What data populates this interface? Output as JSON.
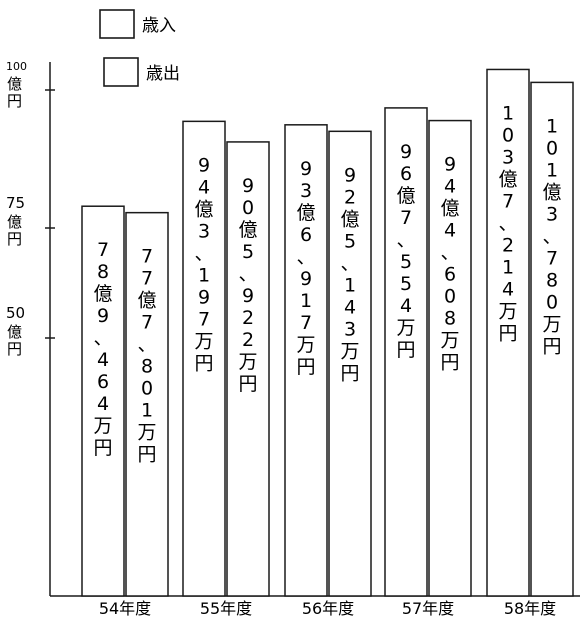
{
  "legend": [
    {
      "label": "歳入"
    },
    {
      "label": "歳出"
    }
  ],
  "chart_data": {
    "type": "bar",
    "categories": [
      "54年度",
      "55年度",
      "56年度",
      "57年度",
      "58年度"
    ],
    "series": [
      {
        "name": "歳入",
        "values": [
          78.9464,
          94.3197,
          93.6917,
          96.7554,
          103.7214
        ]
      },
      {
        "name": "歳出",
        "values": [
          77.7801,
          90.5922,
          92.5143,
          94.4608,
          101.378
        ]
      }
    ],
    "data_labels": [
      [
        "78億9、464万円",
        "77億7、801万円"
      ],
      [
        "94億3、197万円",
        "90億5、922万円"
      ],
      [
        "93億6、917万円",
        "92億5、143万円"
      ],
      [
        "96億7、554万円",
        "94億4、608万円"
      ],
      [
        "103億7、214万円",
        "101億3、780万円"
      ]
    ],
    "y_ticks": [
      {
        "value": 100,
        "number": "100",
        "unit": "億円"
      },
      {
        "value": 75,
        "number": "75",
        "unit": "億円"
      },
      {
        "value": 50,
        "number": "50",
        "unit": "億円"
      }
    ],
    "legend_position": "top-left",
    "grid": false
  }
}
